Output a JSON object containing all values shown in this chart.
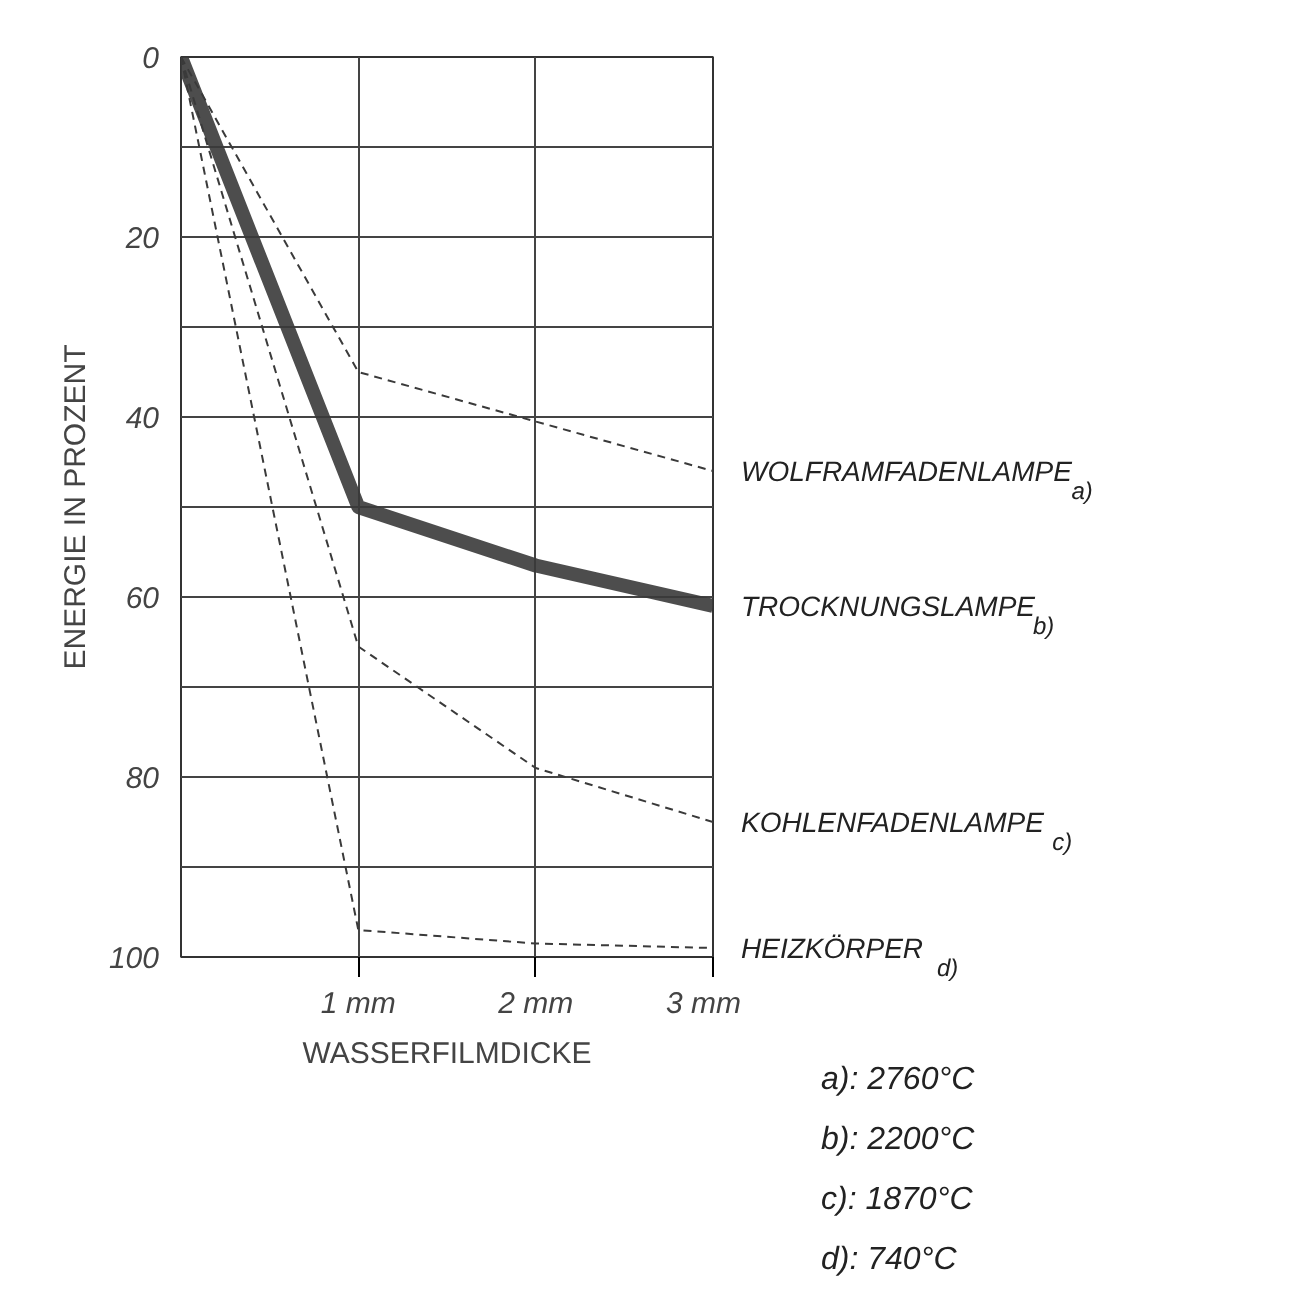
{
  "chart_data": {
    "type": "line",
    "xlabel": "WASSERFILMDICKE",
    "ylabel": "ENERGIE IN PROZENT",
    "x": [
      0,
      1,
      2,
      3
    ],
    "xlim": [
      0,
      3
    ],
    "ylim": [
      100,
      0
    ],
    "xticks": [
      {
        "value": 1,
        "label": "1 mm"
      },
      {
        "value": 2,
        "label": "2 mm"
      },
      {
        "value": 3,
        "label": "3 mm"
      }
    ],
    "yticks": [
      0,
      {
        "value": 10,
        "label": null
      },
      20,
      {
        "value": 30,
        "label": null
      },
      40,
      {
        "value": 50,
        "label": null
      },
      60,
      {
        "value": 70,
        "label": null
      },
      80,
      {
        "value": 90,
        "label": null
      },
      100
    ],
    "grid": true,
    "marker": "none",
    "series": [
      {
        "name": "WOLFRAMFADENLAMPE$_{a)}$",
        "color": "#3a3a3a",
        "line_style": "dashed",
        "values": [
          0,
          35,
          40.5,
          46
        ]
      },
      {
        "name": "TROCKNUNGSLAMPE$_{b)}$",
        "color": "#3a3a3a",
        "line_style": "solid",
        "values": [
          0,
          50,
          56.5,
          61
        ]
      },
      {
        "name": "KOHLENFADENLAMPE$_{c)}$",
        "color": "#3a3a3a",
        "line_style": "dashed",
        "values": [
          0,
          65.5,
          79,
          85
        ]
      },
      {
        "name": "HEIZKÖRPER$_{d)}$",
        "color": "#3a3a3a",
        "line_style": "dashed",
        "values": [
          0,
          97,
          98.5,
          99
        ]
      }
    ],
    "annotations": [
      "a): 2760°C",
      "b): 2200°C",
      "c): 1870°C",
      "d):  740°C"
    ]
  }
}
